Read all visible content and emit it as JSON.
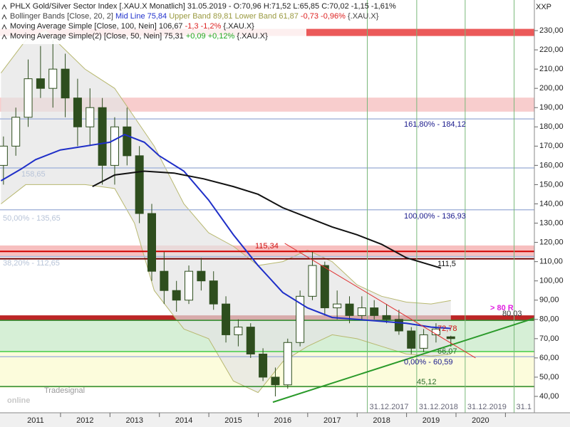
{
  "header": {
    "legend": [
      [
        {
          "text": "PHLX Gold/Silver Sector Index [.XAU.X  Monatlich] 31.05.2019 - O:70,96 H:71,52 L:65,85 C:70,02 -1,15 -1,61%",
          "color": "#222222"
        }
      ],
      [
        {
          "text": "Bollinger Bands [Close, 20, 2] ",
          "color": "#444444"
        },
        {
          "text": "Mid Line 75,84 ",
          "color": "#2233cc"
        },
        {
          "text": "Upper Band 89,81 ",
          "color": "#9a9a40"
        },
        {
          "text": "Lower Band 61,87 ",
          "color": "#9a9a40"
        },
        {
          "text": "-0,73 -0,96% ",
          "color": "#dd2222"
        },
        {
          "text": "{.XAU.X}",
          "color": "#444444"
        }
      ],
      [
        {
          "text": "Moving Average Simple [Close, 100, Nein] 106,67 ",
          "color": "#222222"
        },
        {
          "text": "-1,3 -1,2% ",
          "color": "#dd2222"
        },
        {
          "text": "{.XAU.X}",
          "color": "#222222"
        }
      ],
      [
        {
          "text": "Moving Average Simple(2) [Close, 50, Nein] 75,31 ",
          "color": "#222222"
        },
        {
          "text": "+0,09 +0,12% ",
          "color": "#22aa22"
        },
        {
          "text": "{.XAU.X}",
          "color": "#222222"
        }
      ]
    ],
    "symbol": "XXP",
    "watermark": [
      "Tradesignal",
      "online"
    ]
  },
  "chart_data": {
    "type": "candlestick",
    "xlim": [
      2010.28,
      2021.09
    ],
    "xticks": [
      2011,
      2012,
      2013,
      2014,
      2015,
      2016,
      2017,
      2018,
      2019,
      2020
    ],
    "ylim": [
      31.5,
      245.9
    ],
    "yticks": [
      {
        "value": 40,
        "label": "40,00"
      },
      {
        "value": 50,
        "label": "50,00"
      },
      {
        "value": 60,
        "label": "60,00"
      },
      {
        "value": 70,
        "label": "70,00"
      },
      {
        "value": 80,
        "label": "80,00"
      },
      {
        "value": 90,
        "label": "90,00"
      },
      {
        "value": 100,
        "label": "100,00"
      },
      {
        "value": 110,
        "label": "110,00"
      },
      {
        "value": 120,
        "label": "120,00"
      },
      {
        "value": 130,
        "label": "130,00"
      },
      {
        "value": 140,
        "label": "140,00"
      },
      {
        "value": 150,
        "label": "150,00"
      },
      {
        "value": 160,
        "label": "160,00"
      },
      {
        "value": 170,
        "label": "170,00"
      },
      {
        "value": 180,
        "label": "180,00"
      },
      {
        "value": 190,
        "label": "190,00"
      },
      {
        "value": 200,
        "label": "200,00"
      },
      {
        "value": 210,
        "label": "210,00"
      },
      {
        "value": 220,
        "label": "220,00"
      },
      {
        "value": 230,
        "label": "230,00"
      }
    ],
    "bands": [
      {
        "from": 63.3,
        "to": 79.5,
        "color": "#cfeccf"
      },
      {
        "from": 44.4,
        "to": 63.3,
        "color": "#fbfbd6"
      },
      {
        "from": 79.5,
        "to": 82.1,
        "color": "#b00000"
      },
      {
        "from": 112.8,
        "to": 118.4,
        "color": "#f6b4b4"
      },
      {
        "from": 187.9,
        "to": 195.2,
        "color": "#f7c4c4"
      },
      {
        "from": 227.2,
        "to": 230.9,
        "color": "#e83c3c"
      }
    ],
    "bollinger": {
      "fill": "#e4e4e4",
      "color": "#b8b870",
      "x": [
        2010.3,
        2010.8,
        2011.2,
        2012.0,
        2012.6,
        2013.0,
        2013.4,
        2014.0,
        2014.5,
        2015.0,
        2015.5,
        2016.0,
        2016.5,
        2017.0,
        2017.5,
        2018.0,
        2018.5,
        2019.0,
        2019.4
      ],
      "upper": [
        208,
        225,
        230,
        210,
        200,
        185,
        170,
        140,
        125,
        118,
        108,
        110,
        116,
        110,
        98,
        92,
        89,
        88,
        89.8
      ],
      "lower": [
        140,
        150,
        150,
        150,
        148,
        130,
        95,
        75,
        70,
        48,
        42,
        58,
        66,
        72,
        70,
        66,
        62,
        61,
        61.9
      ]
    },
    "levels": [
      {
        "value": 184.12,
        "color": "#a8b8dc",
        "width": 1.5
      },
      {
        "value": 158.65,
        "color": "#a8b8dc",
        "width": 1.5
      },
      {
        "value": 136.93,
        "color": "#a8b8dc",
        "width": 1.5
      },
      {
        "value": 112.65,
        "color": "#a8b8dc",
        "width": 1.5
      },
      {
        "value": 60.59,
        "color": "#a8b8dc",
        "width": 1.5
      },
      {
        "value": 115.34,
        "color": "#d00000",
        "width": 2
      },
      {
        "value": 111.5,
        "color": "#700000",
        "width": 2
      },
      {
        "value": 79.5,
        "color": "#2a8a2a",
        "width": 1.5
      },
      {
        "value": 63.3,
        "color": "#44cc44",
        "width": 1.5
      },
      {
        "value": 45.12,
        "color": "#2a8a2a",
        "width": 1.5
      }
    ],
    "vlines": [
      {
        "x": 2017.71,
        "label": "31.12.2017"
      },
      {
        "x": 2018.71,
        "label": "31.12.2018"
      },
      {
        "x": 2019.69,
        "label": "31.12.2019"
      },
      {
        "x": 2020.68,
        "label": "31.1"
      }
    ],
    "candles": {
      "up_color": "#ffffff",
      "down_color": "#2e4e1e",
      "edge_color": "#2e4e1e",
      "x": [
        2010.35,
        2010.6,
        2010.85,
        2011.1,
        2011.35,
        2011.6,
        2011.85,
        2012.1,
        2012.35,
        2012.6,
        2012.85,
        2013.1,
        2013.35,
        2013.6,
        2013.85,
        2014.1,
        2014.35,
        2014.6,
        2014.85,
        2015.1,
        2015.35,
        2015.6,
        2015.85,
        2016.1,
        2016.35,
        2016.6,
        2016.85,
        2017.1,
        2017.35,
        2017.6,
        2017.85,
        2018.1,
        2018.35,
        2018.6,
        2018.85,
        2019.1,
        2019.4
      ],
      "open": [
        160,
        170,
        185,
        205,
        200,
        210,
        195,
        180,
        190,
        160,
        180,
        165,
        135,
        105,
        95,
        90,
        105,
        100,
        88,
        72,
        76,
        62,
        50,
        46,
        68,
        92,
        108,
        86,
        88,
        82,
        86,
        82,
        80,
        74,
        65,
        72,
        70.96
      ],
      "high": [
        175,
        190,
        215,
        222,
        225,
        218,
        205,
        200,
        195,
        185,
        190,
        170,
        140,
        115,
        100,
        108,
        112,
        105,
        92,
        80,
        78,
        65,
        55,
        70,
        95,
        115,
        110,
        95,
        92,
        92,
        90,
        88,
        85,
        76,
        75,
        78,
        71.52
      ],
      "low": [
        150,
        165,
        180,
        195,
        190,
        185,
        170,
        170,
        150,
        150,
        160,
        130,
        100,
        88,
        84,
        88,
        95,
        85,
        68,
        66,
        60,
        48,
        40,
        44,
        66,
        90,
        82,
        80,
        78,
        80,
        80,
        78,
        72,
        62,
        63,
        68,
        65.85
      ],
      "close": [
        170,
        185,
        205,
        200,
        210,
        195,
        180,
        190,
        160,
        180,
        165,
        135,
        105,
        95,
        90,
        105,
        100,
        88,
        72,
        76,
        62,
        50,
        46,
        68,
        92,
        108,
        86,
        88,
        82,
        86,
        82,
        80,
        74,
        65,
        72,
        75,
        70.02
      ]
    },
    "lines": [
      {
        "color": "#1f2fc8",
        "width": 2,
        "x": [
          2010.3,
          2010.7,
          2011.0,
          2011.5,
          2012.0,
          2012.5,
          2012.8,
          2013.2,
          2013.5,
          2014.0,
          2014.5,
          2015.0,
          2015.5,
          2016.0,
          2016.5,
          2017.0,
          2017.5,
          2018.0,
          2018.5,
          2019.0,
          2019.4
        ],
        "values": [
          152,
          158,
          163,
          168,
          170,
          172,
          176,
          172,
          165,
          157,
          142,
          124,
          108,
          94,
          86,
          81,
          80,
          79,
          78,
          76,
          75.31
        ]
      },
      {
        "color": "#111111",
        "width": 2,
        "x": [
          2012.15,
          2012.6,
          2013.2,
          2013.8,
          2014.4,
          2015.0,
          2015.5,
          2016.0,
          2016.5,
          2017.0,
          2017.5,
          2018.0,
          2018.5,
          2019.2
        ],
        "values": [
          149,
          155,
          157,
          156,
          153,
          149,
          145,
          138,
          133,
          128,
          124,
          119,
          112,
          106.67
        ]
      },
      {
        "color": "#2a9a2a",
        "width": 2,
        "x": [
          2015.8,
          2021.09
        ],
        "values": [
          37,
          80.6
        ]
      },
      {
        "color": "#e03030",
        "width": 1,
        "x": [
          2016.04,
          2019.9
        ],
        "values": [
          119.5,
          60
        ]
      }
    ],
    "annotations": [
      {
        "text": "161,80% - 184,12",
        "color": "#1a1a8c"
      },
      {
        "text": "100,00% - 136,93",
        "color": "#1a1a8c"
      },
      {
        "text": "115,34",
        "color": "#d01010"
      },
      {
        "text": "111,5",
        "color": "#111111"
      },
      {
        "text": "> 80 R",
        "color": "#e020e0"
      },
      {
        "text": "80,03",
        "color": "#333333"
      },
      {
        "text": "72,78",
        "color": "#d01010"
      },
      {
        "text": "66,07",
        "color": "#2a6a2a"
      },
      {
        "text": "0,00% - 60,59",
        "color": "#1a1a8c"
      },
      {
        "text": "45,12",
        "color": "#2a6a2a"
      },
      {
        "text": "158,65",
        "color": "#b8c4d8"
      },
      {
        "text": "50,00% - 135,65",
        "color": "#b8c4d8"
      },
      {
        "text": "38,20% - 112,65",
        "color": "#b8c4d8"
      }
    ]
  }
}
